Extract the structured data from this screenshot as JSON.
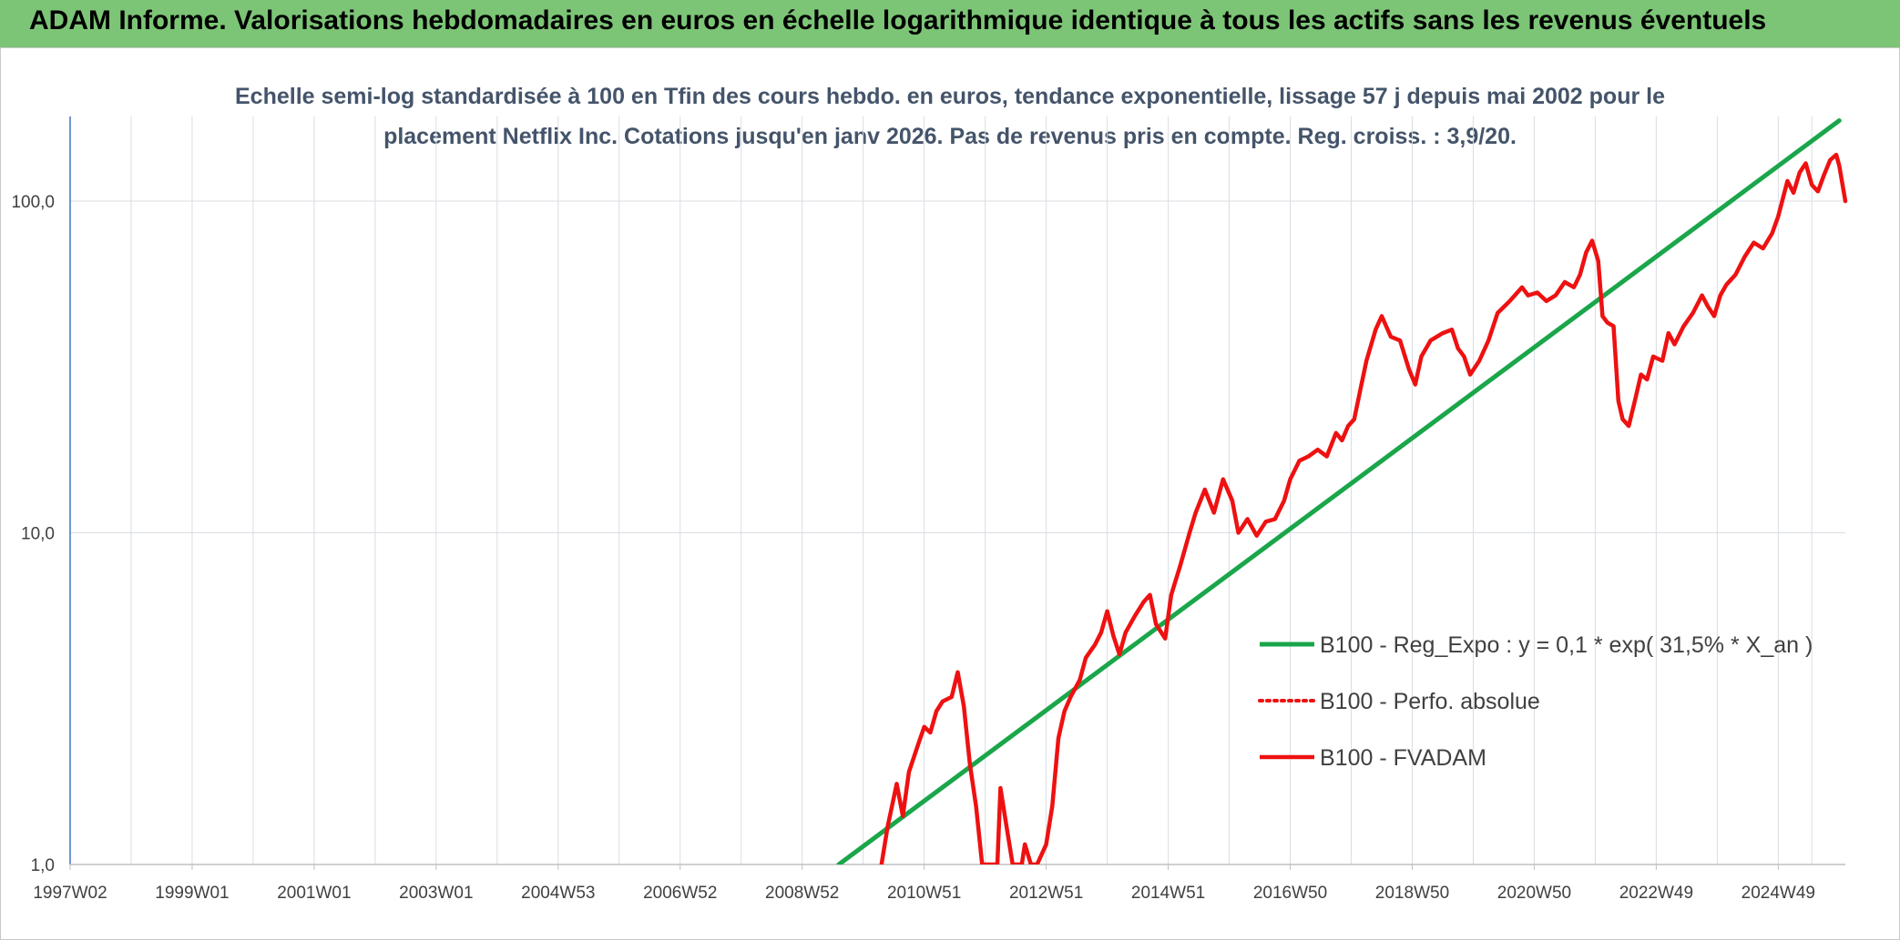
{
  "header": {
    "title": "ADAM Informe. Valorisations hebdomadaires en euros en échelle logarithmique identique à tous les actifs sans les revenus éventuels"
  },
  "colors": {
    "header_bg": "#7cc576",
    "corner_accent": "#f2b705",
    "trend": "#1aa64a",
    "fvadam": "#ee1111",
    "perfo": "#ee1111",
    "grid": "#d9dde3",
    "axis": "#4472c4"
  },
  "chart_data": {
    "type": "line",
    "title_line1": "Echelle semi-log standardisée à 100 en Tfin des cours hebdo. en euros, tendance exponentielle, lissage 57 j depuis mai 2002 pour le",
    "title_line2": "placement Netflix Inc. Cotations jusqu'en janv 2026. Pas de revenus pris en compte. Reg. croiss. : 3,9/20.",
    "y_scale": "log",
    "ylim": [
      1,
      180
    ],
    "xlim": [
      1997.0,
      2026.1
    ],
    "y_ticks": [
      {
        "value": 1,
        "label": "1,0"
      },
      {
        "value": 10,
        "label": "10,0"
      },
      {
        "value": 100,
        "label": "100,0"
      }
    ],
    "x_ticks": [
      {
        "value": 1997.0,
        "label": "1997W02"
      },
      {
        "value": 1999.0,
        "label": "1999W01"
      },
      {
        "value": 2001.0,
        "label": "2001W01"
      },
      {
        "value": 2003.0,
        "label": "2003W01"
      },
      {
        "value": 2005.0,
        "label": "2004W53"
      },
      {
        "value": 2007.0,
        "label": "2006W52"
      },
      {
        "value": 2009.0,
        "label": "2008W52"
      },
      {
        "value": 2011.0,
        "label": "2010W51"
      },
      {
        "value": 2013.0,
        "label": "2012W51"
      },
      {
        "value": 2015.0,
        "label": "2014W51"
      },
      {
        "value": 2017.0,
        "label": "2016W50"
      },
      {
        "value": 2019.0,
        "label": "2018W50"
      },
      {
        "value": 2021.0,
        "label": "2020W50"
      },
      {
        "value": 2023.0,
        "label": "2022W49"
      },
      {
        "value": 2025.0,
        "label": "2024W49"
      }
    ],
    "grid": true,
    "legend_position": "right-center",
    "series": [
      {
        "name": "B100 - Reg_Expo : y = 0,1 * exp( 31,5% *  X_an )",
        "style": "solid-green",
        "points": [
          [
            2009.6,
            1.0
          ],
          [
            2026.0,
            175
          ]
        ]
      },
      {
        "name": "B100 - Perfo. absolue",
        "style": "dotted-red",
        "points": []
      },
      {
        "name": "B100 - FVADAM",
        "style": "solid-red",
        "points": [
          [
            2010.3,
            1.0
          ],
          [
            2010.4,
            1.3
          ],
          [
            2010.55,
            1.75
          ],
          [
            2010.65,
            1.4
          ],
          [
            2010.75,
            1.9
          ],
          [
            2010.9,
            2.3
          ],
          [
            2011.0,
            2.6
          ],
          [
            2011.1,
            2.5
          ],
          [
            2011.2,
            2.9
          ],
          [
            2011.3,
            3.1
          ],
          [
            2011.45,
            3.2
          ],
          [
            2011.55,
            3.8
          ],
          [
            2011.65,
            3.0
          ],
          [
            2011.75,
            2.0
          ],
          [
            2011.85,
            1.5
          ],
          [
            2011.95,
            1.0
          ],
          [
            2012.2,
            1.0
          ],
          [
            2012.25,
            1.7
          ],
          [
            2012.35,
            1.3
          ],
          [
            2012.45,
            1.0
          ],
          [
            2012.6,
            1.0
          ],
          [
            2012.65,
            1.15
          ],
          [
            2012.75,
            1.0
          ],
          [
            2012.85,
            1.0
          ],
          [
            2013.0,
            1.15
          ],
          [
            2013.1,
            1.5
          ],
          [
            2013.2,
            2.4
          ],
          [
            2013.3,
            2.9
          ],
          [
            2013.4,
            3.2
          ],
          [
            2013.55,
            3.6
          ],
          [
            2013.65,
            4.2
          ],
          [
            2013.8,
            4.6
          ],
          [
            2013.9,
            5.0
          ],
          [
            2014.0,
            5.8
          ],
          [
            2014.1,
            4.9
          ],
          [
            2014.2,
            4.3
          ],
          [
            2014.3,
            5.0
          ],
          [
            2014.45,
            5.6
          ],
          [
            2014.6,
            6.2
          ],
          [
            2014.7,
            6.5
          ],
          [
            2014.8,
            5.3
          ],
          [
            2014.95,
            4.8
          ],
          [
            2015.05,
            6.5
          ],
          [
            2015.2,
            8.0
          ],
          [
            2015.35,
            10.0
          ],
          [
            2015.45,
            11.5
          ],
          [
            2015.6,
            13.5
          ],
          [
            2015.75,
            11.5
          ],
          [
            2015.9,
            14.5
          ],
          [
            2016.05,
            12.5
          ],
          [
            2016.15,
            10.0
          ],
          [
            2016.3,
            11.0
          ],
          [
            2016.45,
            9.8
          ],
          [
            2016.6,
            10.8
          ],
          [
            2016.75,
            11.0
          ],
          [
            2016.9,
            12.5
          ],
          [
            2017.0,
            14.5
          ],
          [
            2017.15,
            16.5
          ],
          [
            2017.3,
            17.0
          ],
          [
            2017.45,
            17.8
          ],
          [
            2017.6,
            17.0
          ],
          [
            2017.75,
            20.0
          ],
          [
            2017.85,
            19.0
          ],
          [
            2017.95,
            21.0
          ],
          [
            2018.05,
            22.0
          ],
          [
            2018.15,
            27.0
          ],
          [
            2018.25,
            33.0
          ],
          [
            2018.4,
            41.0
          ],
          [
            2018.5,
            45.0
          ],
          [
            2018.65,
            39.0
          ],
          [
            2018.8,
            38.0
          ],
          [
            2018.95,
            31.0
          ],
          [
            2019.05,
            28.0
          ],
          [
            2019.15,
            34.0
          ],
          [
            2019.3,
            38.0
          ],
          [
            2019.5,
            40.0
          ],
          [
            2019.65,
            41.0
          ],
          [
            2019.75,
            36.0
          ],
          [
            2019.85,
            34.0
          ],
          [
            2019.95,
            30.0
          ],
          [
            2020.1,
            33.0
          ],
          [
            2020.25,
            38.0
          ],
          [
            2020.4,
            46.0
          ],
          [
            2020.6,
            50.0
          ],
          [
            2020.8,
            55.0
          ],
          [
            2020.9,
            52.0
          ],
          [
            2021.05,
            53.0
          ],
          [
            2021.2,
            50.0
          ],
          [
            2021.35,
            52.0
          ],
          [
            2021.5,
            57.0
          ],
          [
            2021.65,
            55.0
          ],
          [
            2021.75,
            60.0
          ],
          [
            2021.85,
            70.0
          ],
          [
            2021.95,
            76.0
          ],
          [
            2022.05,
            66.0
          ],
          [
            2022.12,
            45.0
          ],
          [
            2022.2,
            43.0
          ],
          [
            2022.3,
            42.0
          ],
          [
            2022.38,
            25.0
          ],
          [
            2022.45,
            22.0
          ],
          [
            2022.55,
            21.0
          ],
          [
            2022.65,
            25.0
          ],
          [
            2022.75,
            30.0
          ],
          [
            2022.85,
            29.0
          ],
          [
            2022.95,
            34.0
          ],
          [
            2023.1,
            33.0
          ],
          [
            2023.2,
            40.0
          ],
          [
            2023.3,
            37.0
          ],
          [
            2023.45,
            42.0
          ],
          [
            2023.6,
            46.0
          ],
          [
            2023.75,
            52.0
          ],
          [
            2023.85,
            48.0
          ],
          [
            2023.95,
            45.0
          ],
          [
            2024.05,
            52.0
          ],
          [
            2024.15,
            56.0
          ],
          [
            2024.3,
            60.0
          ],
          [
            2024.45,
            68.0
          ],
          [
            2024.6,
            75.0
          ],
          [
            2024.75,
            72.0
          ],
          [
            2024.9,
            80.0
          ],
          [
            2025.0,
            90.0
          ],
          [
            2025.15,
            115.0
          ],
          [
            2025.25,
            106.0
          ],
          [
            2025.35,
            122.0
          ],
          [
            2025.45,
            130.0
          ],
          [
            2025.55,
            112.0
          ],
          [
            2025.65,
            107.0
          ],
          [
            2025.75,
            120.0
          ],
          [
            2025.85,
            133.0
          ],
          [
            2025.95,
            138.0
          ],
          [
            2026.0,
            128.0
          ],
          [
            2026.1,
            100.0
          ]
        ]
      }
    ]
  }
}
